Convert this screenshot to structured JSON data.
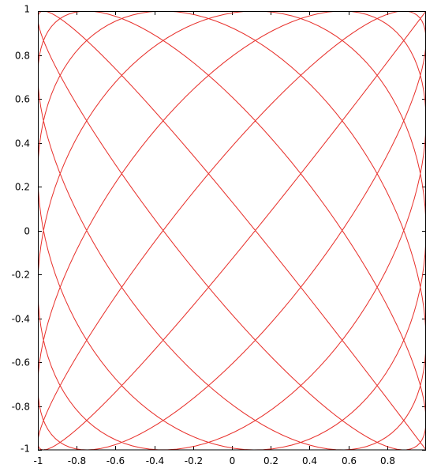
{
  "chart_data": {
    "type": "line",
    "title": "",
    "xlabel": "",
    "ylabel": "",
    "xlim": [
      -1,
      1
    ],
    "ylim": [
      -1,
      1
    ],
    "grid": false,
    "legend": "none",
    "series": [
      {
        "color": "#e8322d",
        "curve": "lissajous",
        "x_equation": "x = cos(t)",
        "y_equation": "y = sin(13t/12)",
        "t_range": [
          0,
          150.796
        ],
        "samples": 3000
      }
    ],
    "xticks": [
      {
        "value": -1,
        "label": "-1"
      },
      {
        "value": -0.8,
        "label": "-0.8"
      },
      {
        "value": -0.6,
        "label": "-0.6"
      },
      {
        "value": -0.4,
        "label": "-0.4"
      },
      {
        "value": -0.2,
        "label": "-0.2"
      },
      {
        "value": 0,
        "label": "0"
      },
      {
        "value": 0.2,
        "label": "0.2"
      },
      {
        "value": 0.4,
        "label": "0.4"
      },
      {
        "value": 0.6,
        "label": "0.6"
      },
      {
        "value": 0.8,
        "label": "0.8"
      }
    ],
    "yticks": [
      {
        "value": 1,
        "label": "1"
      },
      {
        "value": 0.8,
        "label": "0.8"
      },
      {
        "value": 0.6,
        "label": "0.6"
      },
      {
        "value": 0.4,
        "label": "0.4"
      },
      {
        "value": 0.2,
        "label": "0.2"
      },
      {
        "value": 0,
        "label": "0"
      },
      {
        "value": -0.2,
        "label": "-0.2"
      },
      {
        "value": -0.4,
        "label": "-0.4"
      },
      {
        "value": -0.6,
        "label": "-0.6"
      },
      {
        "value": -0.8,
        "label": "-0.8"
      },
      {
        "value": -1,
        "label": "-1"
      }
    ]
  }
}
